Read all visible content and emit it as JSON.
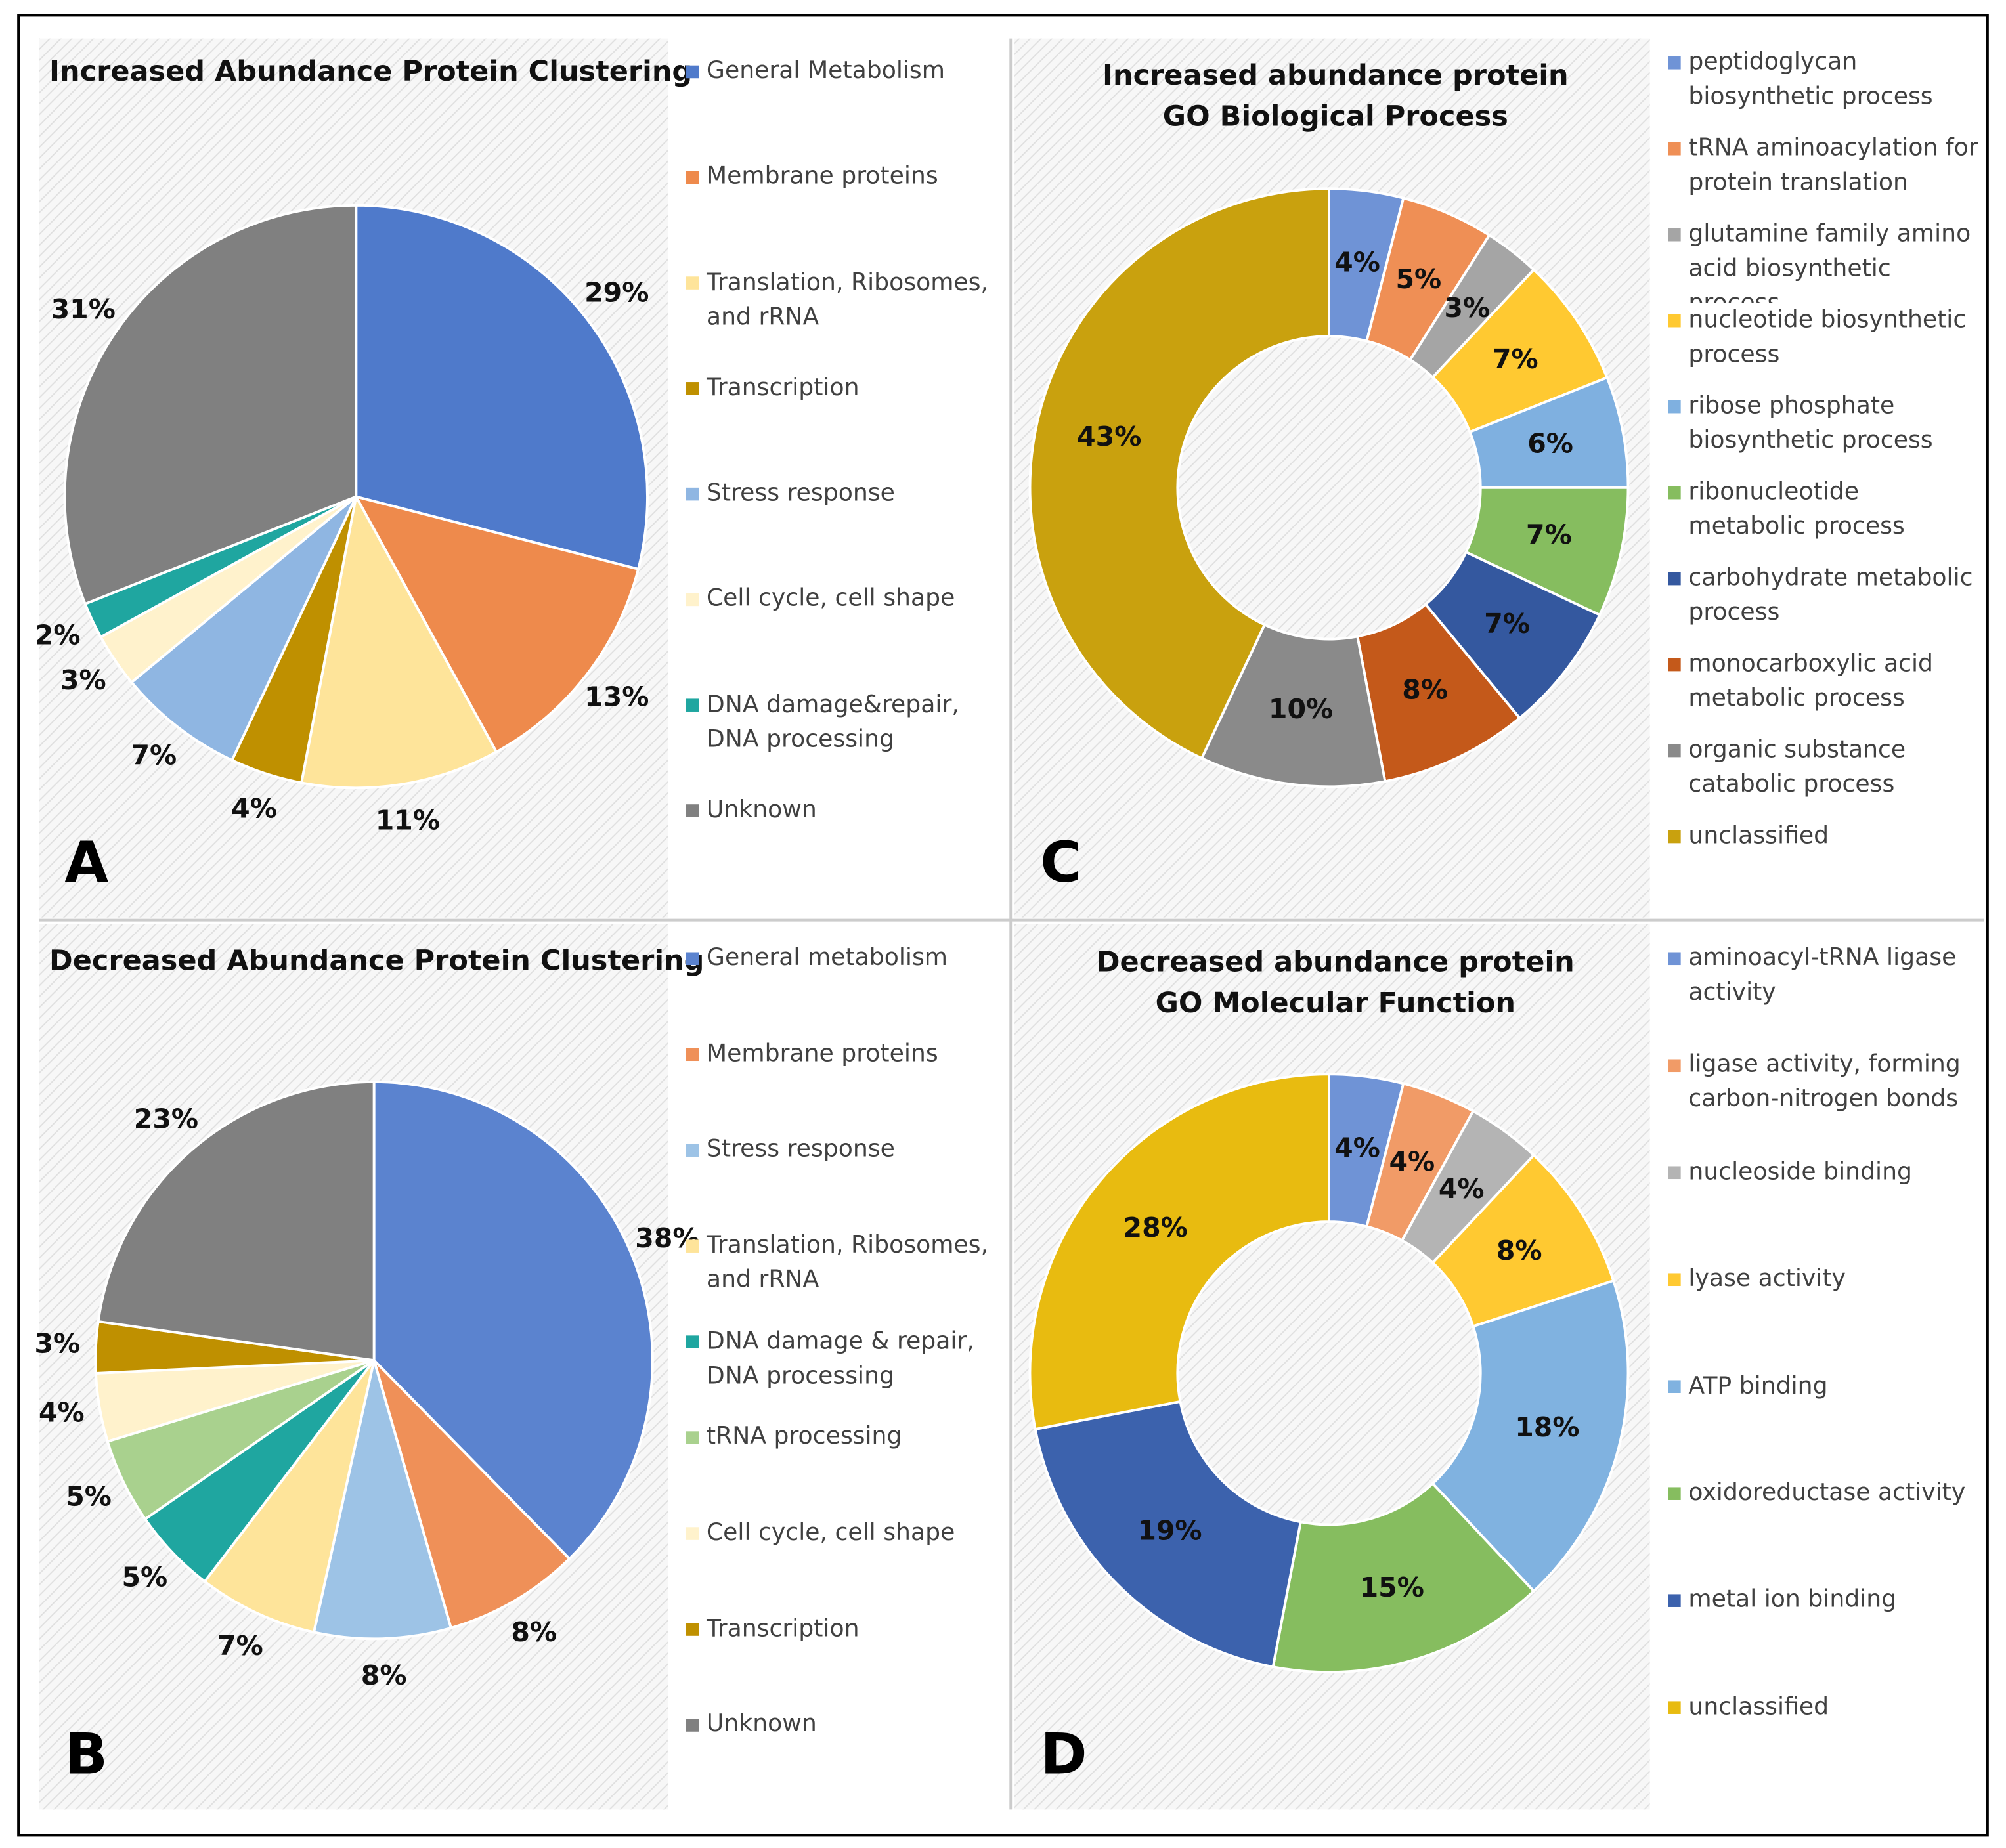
{
  "chart_data": [
    {
      "type": "pie",
      "panel": "A",
      "title": [
        "Increased Abundance Protein Clustering"
      ],
      "categories": [
        "General Metabolism",
        "Membrane proteins",
        "Translation, Ribosomes, and rRNA",
        "Transcription",
        "Stress response",
        "Cell cycle, cell shape",
        "DNA damage&repair, DNA processing",
        "Unknown"
      ],
      "values": [
        29,
        13,
        11,
        4,
        7,
        3,
        2,
        31
      ],
      "value_labels": [
        "29%",
        "13%",
        "11%",
        "4%",
        "7%",
        "3%",
        "2%",
        "31%"
      ],
      "colors": [
        "#4f7acb",
        "#ee8a4c",
        "#fee49a",
        "#bf9000",
        "#8fb6e2",
        "#fff2cc",
        "#1fa6a0",
        "#808080"
      ]
    },
    {
      "type": "donut",
      "panel": "C",
      "title": [
        "Increased abundance protein",
        "GO Biological Process"
      ],
      "categories": [
        "peptidoglycan biosynthetic process",
        "tRNA aminoacylation for protein translation",
        "glutamine family amino acid biosynthetic process",
        "nucleotide biosynthetic process",
        "ribose phosphate biosynthetic process",
        "ribonucleotide metabolic process",
        "carbohydrate metabolic process",
        "monocarboxylic acid metabolic process",
        "organic substance catabolic process",
        "unclassified"
      ],
      "values": [
        4,
        5,
        3,
        7,
        6,
        7,
        7,
        8,
        10,
        43
      ],
      "value_labels": [
        "4%",
        "5%",
        "3%",
        "7%",
        "6%",
        "7%",
        "7%",
        "8%",
        "10%",
        "43%"
      ],
      "colors": [
        "#6f93d6",
        "#ef8f55",
        "#a5a5a5",
        "#ffc931",
        "#7fb0e0",
        "#86bd5f",
        "#34589f",
        "#c4591a",
        "#8a8a8a",
        "#c9a10e"
      ]
    },
    {
      "type": "pie",
      "panel": "B",
      "title": [
        "Decreased Abundance Protein Clustering"
      ],
      "categories": [
        "General metabolism",
        "Membrane proteins",
        "Stress response",
        "Translation, Ribosomes, and rRNA",
        "DNA damage & repair, DNA processing",
        "tRNA processing",
        "Cell cycle, cell shape",
        "Transcription",
        "Unknown"
      ],
      "values": [
        38,
        8,
        8,
        7,
        5,
        5,
        4,
        3,
        23
      ],
      "value_labels": [
        "38%",
        "8%",
        "8%",
        "7%",
        "5%",
        "5%",
        "4%",
        "3%",
        "23%"
      ],
      "colors": [
        "#5b83cf",
        "#ef9058",
        "#9dc3e6",
        "#fee49a",
        "#1fa6a0",
        "#a9d18e",
        "#fff2cc",
        "#bf9000",
        "#808080"
      ]
    },
    {
      "type": "donut",
      "panel": "D",
      "title": [
        "Decreased abundance protein",
        "GO Molecular Function"
      ],
      "categories": [
        "aminoacyl-tRNA ligase activity",
        "ligase activity, forming carbon-nitrogen bonds",
        "nucleoside binding",
        "lyase activity",
        "ATP binding",
        "oxidoreductase activity",
        "metal ion binding",
        "unclassified"
      ],
      "values": [
        4,
        4,
        4,
        8,
        18,
        15,
        19,
        28
      ],
      "value_labels": [
        "4%",
        "4%",
        "4%",
        "8%",
        "18%",
        "15%",
        "19%",
        "28%"
      ],
      "colors": [
        "#6f93d6",
        "#f19b67",
        "#b4b4b4",
        "#ffc931",
        "#80b2e0",
        "#86bd5f",
        "#3c62ad",
        "#e8bb10"
      ]
    }
  ]
}
